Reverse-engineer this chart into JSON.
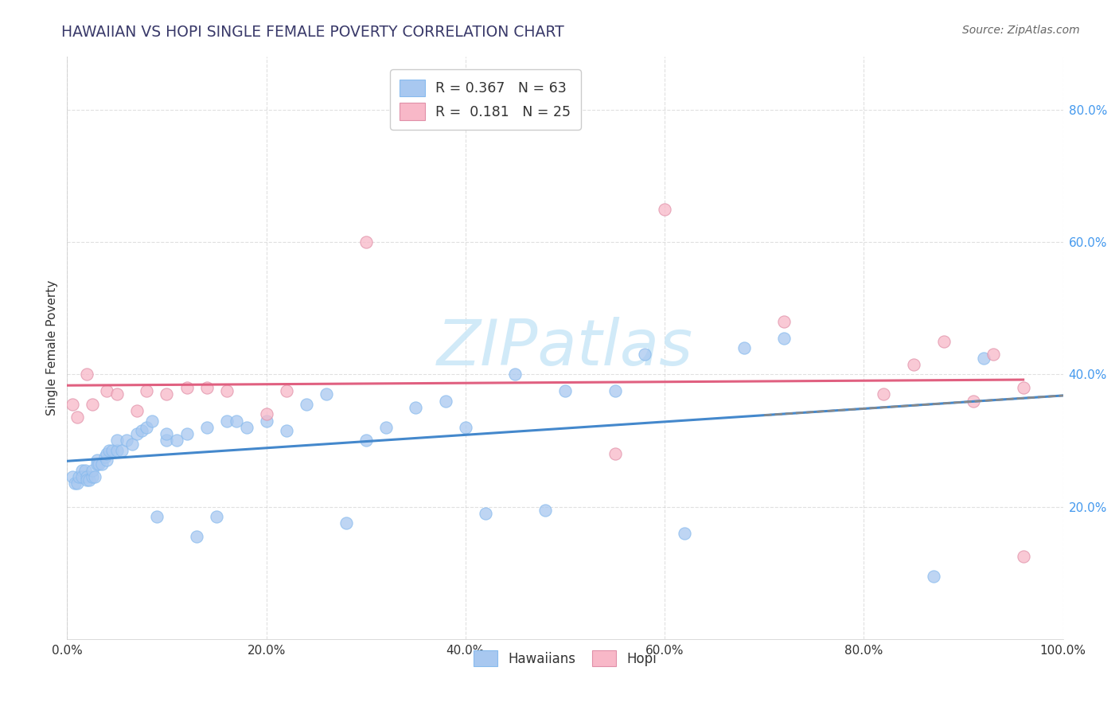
{
  "title": "HAWAIIAN VS HOPI SINGLE FEMALE POVERTY CORRELATION CHART",
  "source": "Source: ZipAtlas.com",
  "ylabel": "Single Female Poverty",
  "xlim": [
    0,
    1.0
  ],
  "ylim": [
    0,
    0.88
  ],
  "xticks": [
    0.0,
    0.2,
    0.4,
    0.6,
    0.8,
    1.0
  ],
  "xtick_labels": [
    "0.0%",
    "20.0%",
    "40.0%",
    "60.0%",
    "80.0%",
    "100.0%"
  ],
  "yticks": [
    0.2,
    0.4,
    0.6,
    0.8
  ],
  "ytick_labels": [
    "20.0%",
    "40.0%",
    "60.0%",
    "80.0%"
  ],
  "hawaiians_color": "#a8c8f0",
  "hopi_color": "#f8b8c8",
  "haw_line_color": "#4488cc",
  "hopi_line_color": "#e06080",
  "background_color": "#ffffff",
  "grid_color": "#cccccc",
  "title_color": "#3a3a6a",
  "ytick_color": "#4499ee",
  "xtick_color": "#333333",
  "ylabel_color": "#333333",
  "watermark_color": "#cce8f8",
  "hawaiians_x": [
    0.005,
    0.008,
    0.01,
    0.012,
    0.015,
    0.015,
    0.018,
    0.02,
    0.02,
    0.022,
    0.025,
    0.025,
    0.028,
    0.03,
    0.03,
    0.032,
    0.035,
    0.038,
    0.04,
    0.04,
    0.042,
    0.045,
    0.05,
    0.05,
    0.055,
    0.06,
    0.065,
    0.07,
    0.075,
    0.08,
    0.085,
    0.09,
    0.1,
    0.1,
    0.11,
    0.12,
    0.13,
    0.14,
    0.15,
    0.16,
    0.17,
    0.18,
    0.2,
    0.22,
    0.24,
    0.26,
    0.28,
    0.3,
    0.32,
    0.35,
    0.38,
    0.4,
    0.42,
    0.45,
    0.48,
    0.5,
    0.55,
    0.58,
    0.62,
    0.68,
    0.72,
    0.87,
    0.92
  ],
  "hawaiians_y": [
    0.245,
    0.235,
    0.235,
    0.245,
    0.255,
    0.245,
    0.255,
    0.245,
    0.24,
    0.24,
    0.245,
    0.255,
    0.245,
    0.27,
    0.265,
    0.265,
    0.265,
    0.275,
    0.27,
    0.28,
    0.285,
    0.285,
    0.285,
    0.3,
    0.285,
    0.3,
    0.295,
    0.31,
    0.315,
    0.32,
    0.33,
    0.185,
    0.3,
    0.31,
    0.3,
    0.31,
    0.155,
    0.32,
    0.185,
    0.33,
    0.33,
    0.32,
    0.33,
    0.315,
    0.355,
    0.37,
    0.175,
    0.3,
    0.32,
    0.35,
    0.36,
    0.32,
    0.19,
    0.4,
    0.195,
    0.375,
    0.375,
    0.43,
    0.16,
    0.44,
    0.455,
    0.095,
    0.425
  ],
  "hopi_x": [
    0.005,
    0.01,
    0.02,
    0.025,
    0.04,
    0.05,
    0.07,
    0.08,
    0.1,
    0.12,
    0.14,
    0.16,
    0.2,
    0.22,
    0.3,
    0.55,
    0.6,
    0.72,
    0.82,
    0.85,
    0.88,
    0.91,
    0.93,
    0.96,
    0.96
  ],
  "hopi_y": [
    0.355,
    0.335,
    0.4,
    0.355,
    0.375,
    0.37,
    0.345,
    0.375,
    0.37,
    0.38,
    0.38,
    0.375,
    0.34,
    0.375,
    0.6,
    0.28,
    0.65,
    0.48,
    0.37,
    0.415,
    0.45,
    0.36,
    0.43,
    0.38,
    0.125
  ]
}
